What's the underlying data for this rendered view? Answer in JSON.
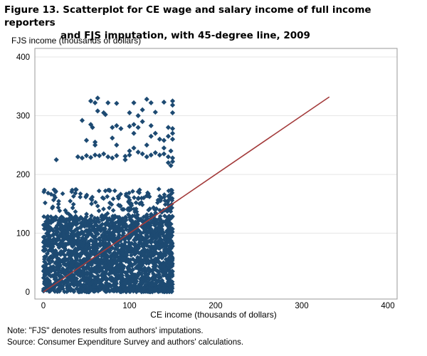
{
  "chart_data": {
    "type": "scatter",
    "title_line1": "Figure 13. Scatterplot for CE wage and salary income of full income reporters",
    "title_line2": "and FJS imputation, with 45-degree line, 2009",
    "xlabel": "CE income  (thousands  of dollars)",
    "ylabel": "FJS income  (thousands  of dollars)",
    "xlim": [
      0,
      400
    ],
    "ylim": [
      0,
      400
    ],
    "xticks": [
      "0",
      "100",
      "200",
      "300",
      "400"
    ],
    "yticks": [
      "0",
      "100",
      "200",
      "300",
      "400"
    ],
    "xtick_values": [
      0,
      100,
      200,
      300,
      400
    ],
    "ytick_values": [
      0,
      100,
      200,
      300,
      400
    ],
    "grid": true,
    "marker": "diamond",
    "point_color": "#1d4a72",
    "line_color": "#a33a3a",
    "reference_line": {
      "x": [
        0,
        332
      ],
      "y": [
        0,
        332
      ]
    },
    "points": [
      [
        55,
        325
      ],
      [
        60,
        322
      ],
      [
        63,
        330
      ],
      [
        75,
        322
      ],
      [
        85,
        321
      ],
      [
        105,
        322
      ],
      [
        120,
        328
      ],
      [
        125,
        322
      ],
      [
        140,
        323
      ],
      [
        150,
        325
      ],
      [
        150,
        318
      ],
      [
        63,
        308
      ],
      [
        70,
        305
      ],
      [
        72,
        302
      ],
      [
        100,
        305
      ],
      [
        110,
        300
      ],
      [
        115,
        310
      ],
      [
        130,
        306
      ],
      [
        150,
        305
      ],
      [
        45,
        292
      ],
      [
        55,
        285
      ],
      [
        57,
        280
      ],
      [
        80,
        280
      ],
      [
        85,
        283
      ],
      [
        90,
        278
      ],
      [
        100,
        282
      ],
      [
        105,
        285
      ],
      [
        110,
        280
      ],
      [
        115,
        290
      ],
      [
        125,
        283
      ],
      [
        145,
        280
      ],
      [
        150,
        278
      ],
      [
        105,
        270
      ],
      [
        125,
        265
      ],
      [
        130,
        270
      ],
      [
        135,
        260
      ],
      [
        140,
        258
      ],
      [
        145,
        265
      ],
      [
        150,
        270
      ],
      [
        80,
        262
      ],
      [
        150,
        260
      ],
      [
        15,
        225
      ],
      [
        40,
        230
      ],
      [
        45,
        228
      ],
      [
        50,
        232
      ],
      [
        55,
        229
      ],
      [
        60,
        233
      ],
      [
        65,
        232
      ],
      [
        70,
        235
      ],
      [
        75,
        230
      ],
      [
        80,
        228
      ],
      [
        85,
        232
      ],
      [
        95,
        231
      ],
      [
        100,
        233
      ],
      [
        100,
        240
      ],
      [
        105,
        245
      ],
      [
        110,
        238
      ],
      [
        115,
        235
      ],
      [
        120,
        230
      ],
      [
        125,
        233
      ],
      [
        130,
        237
      ],
      [
        135,
        233
      ],
      [
        140,
        235
      ],
      [
        145,
        230
      ],
      [
        150,
        228
      ],
      [
        50,
        258
      ],
      [
        60,
        255
      ],
      [
        85,
        250
      ],
      [
        95,
        225
      ],
      [
        145,
        220
      ],
      [
        148,
        215
      ],
      [
        150,
        222
      ],
      [
        60,
        250
      ],
      [
        120,
        250
      ],
      [
        140,
        245
      ],
      [
        148,
        240
      ]
    ],
    "cloud": [
      {
        "x": [
          0,
          150
        ],
        "y": [
          0,
          130
        ],
        "n": 1800
      },
      {
        "x": [
          0,
          100
        ],
        "y": [
          0,
          175
        ],
        "n": 350
      },
      {
        "x": [
          100,
          150
        ],
        "y": [
          0,
          175
        ],
        "n": 250
      },
      {
        "x": [
          145,
          150
        ],
        "y": [
          0,
          175
        ],
        "n": 90
      }
    ]
  },
  "footer": {
    "note": "Note: \"FJS\" denotes results from authors' imputations.",
    "source": "Source: Consumer Expenditure  Survey and authors'  calculations."
  }
}
